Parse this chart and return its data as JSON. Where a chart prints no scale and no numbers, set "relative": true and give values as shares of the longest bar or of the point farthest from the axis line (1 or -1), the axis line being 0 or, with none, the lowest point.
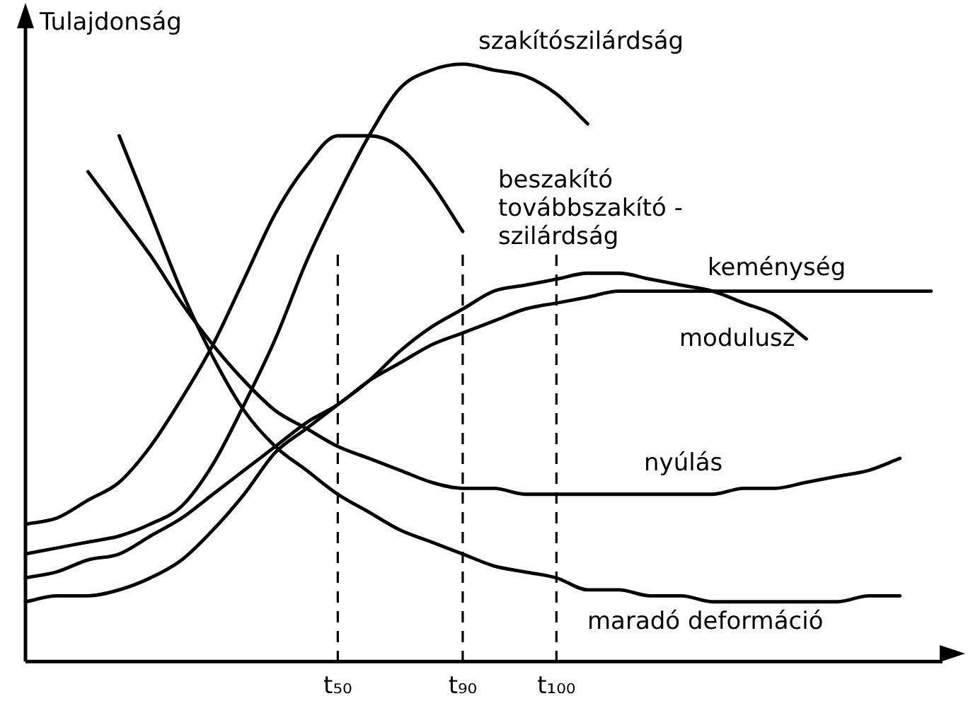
{
  "chart_data": {
    "type": "line",
    "relative": true,
    "ylabel": "Tulajdonság",
    "categories": [
      null,
      null,
      null,
      null,
      null,
      null,
      null,
      null,
      null,
      null,
      "t₅₀",
      null,
      null,
      null,
      "t₉₀",
      null,
      null,
      "t₁₀₀",
      null,
      null,
      null,
      null,
      null,
      null,
      null,
      null,
      null,
      null,
      null,
      null
    ],
    "series": [
      {
        "name": "szakítószilárdság",
        "color": "#000000",
        "values": [
          0.18,
          0.19,
          0.2,
          0.21,
          0.23,
          0.26,
          0.33,
          0.43,
          0.54,
          0.67,
          0.78,
          0.88,
          0.96,
          0.99,
          1,
          0.99,
          0.98,
          0.95,
          0.9,
          null,
          null,
          null,
          null,
          null,
          null,
          null,
          null,
          null,
          null,
          null
        ]
      },
      {
        "name": "beszakító továbbszakító - szilárdság",
        "color": "#000000",
        "values": [
          0.23,
          0.24,
          0.27,
          0.3,
          0.36,
          0.44,
          0.53,
          0.64,
          0.75,
          0.83,
          0.88,
          0.88,
          0.86,
          0.8,
          0.72,
          null,
          null,
          null,
          null,
          null,
          null,
          null,
          null,
          null,
          null,
          null,
          null,
          null,
          null,
          null
        ]
      },
      {
        "name": "keménység",
        "color": "#000000",
        "values": [
          0.14,
          0.15,
          0.17,
          0.18,
          0.21,
          0.24,
          0.28,
          0.32,
          0.36,
          0.4,
          0.43,
          0.47,
          0.5,
          0.53,
          0.55,
          0.57,
          0.59,
          0.6,
          0.61,
          0.62,
          0.62,
          0.62,
          0.62,
          0.62,
          0.62,
          0.62,
          0.62,
          0.62,
          0.62,
          0.62
        ]
      },
      {
        "name": "modulusz",
        "color": "#000000",
        "values": [
          0.1,
          0.11,
          0.11,
          0.12,
          0.14,
          0.17,
          0.22,
          0.28,
          0.35,
          0.39,
          0.43,
          0.47,
          0.52,
          0.56,
          0.59,
          0.62,
          0.63,
          0.64,
          0.65,
          0.65,
          0.64,
          0.63,
          0.62,
          0.6,
          0.58,
          0.54,
          null,
          null,
          null,
          null
        ]
      },
      {
        "name": "nyúlás",
        "color": "#000000",
        "values": [
          null,
          null,
          0.82,
          0.75,
          0.68,
          0.6,
          0.53,
          0.47,
          0.42,
          0.39,
          0.36,
          0.34,
          0.32,
          0.3,
          0.29,
          0.29,
          0.28,
          0.28,
          0.28,
          0.28,
          0.28,
          0.28,
          0.28,
          0.29,
          0.29,
          0.3,
          0.31,
          0.32,
          0.34,
          null
        ]
      },
      {
        "name": "maradó deformáció",
        "color": "#000000",
        "values": [
          null,
          null,
          null,
          0.88,
          0.75,
          0.62,
          0.51,
          0.42,
          0.36,
          0.32,
          0.28,
          0.25,
          0.22,
          0.2,
          0.18,
          0.16,
          0.15,
          0.14,
          0.12,
          0.12,
          0.11,
          0.11,
          0.1,
          0.1,
          0.1,
          0.1,
          0.1,
          0.11,
          0.11,
          null
        ]
      }
    ],
    "ref_lines": [
      {
        "axis": "x",
        "value": "t₅₀",
        "line_style": "dashed"
      },
      {
        "axis": "x",
        "value": "t₉₀",
        "line_style": "dashed"
      },
      {
        "axis": "x",
        "value": "t₁₀₀",
        "line_style": "dashed"
      }
    ],
    "legend": false,
    "grid": false,
    "marker": "none",
    "line_style": "solid"
  }
}
